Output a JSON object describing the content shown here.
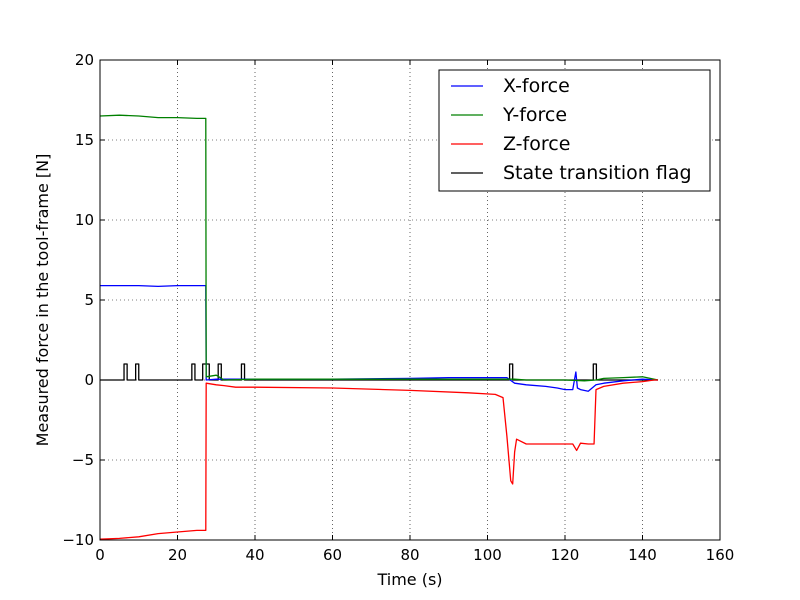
{
  "chart_data": {
    "type": "line",
    "title": "",
    "xlabel": "Time (s)",
    "ylabel": "Measured force in the tool-frame [N]",
    "xlim": [
      0,
      160
    ],
    "ylim": [
      -10,
      20
    ],
    "xticks": [
      0,
      20,
      40,
      60,
      80,
      100,
      120,
      140,
      160
    ],
    "yticks": [
      -10,
      -5,
      0,
      5,
      10,
      15,
      20
    ],
    "xtick_labels": [
      "0",
      "20",
      "40",
      "60",
      "80",
      "100",
      "120",
      "140",
      "160"
    ],
    "ytick_labels": [
      "−10",
      "−5",
      "0",
      "5",
      "10",
      "15",
      "20"
    ],
    "grid": true,
    "legend_position": "top-right",
    "series": [
      {
        "name": "X-force",
        "color": "#0000ff",
        "x": [
          0,
          5,
          10,
          15,
          20,
          25,
          27.3,
          27.4,
          30,
          40,
          60,
          80,
          90,
          100,
          105,
          107,
          110,
          115,
          118,
          120,
          122,
          122.8,
          123.2,
          124,
          126,
          128,
          130,
          135,
          140,
          144
        ],
        "y": [
          5.9,
          5.9,
          5.9,
          5.85,
          5.9,
          5.9,
          5.9,
          0.0,
          0.05,
          0.05,
          0.05,
          0.1,
          0.15,
          0.15,
          0.15,
          -0.2,
          -0.3,
          -0.4,
          -0.5,
          -0.6,
          -0.6,
          0.5,
          -0.5,
          -0.6,
          -0.7,
          -0.3,
          -0.2,
          -0.05,
          0.05,
          0.0
        ]
      },
      {
        "name": "Y-force",
        "color": "#008000",
        "x": [
          0,
          5,
          10,
          15,
          20,
          25,
          27.3,
          27.4,
          30,
          32,
          40,
          60,
          80,
          100,
          105,
          107,
          110,
          120,
          125,
          128,
          130,
          135,
          140,
          144
        ],
        "y": [
          16.5,
          16.55,
          16.5,
          16.4,
          16.4,
          16.35,
          16.35,
          0.2,
          0.3,
          0.0,
          0.05,
          0.05,
          0.05,
          0.05,
          0.05,
          0.05,
          0.0,
          0.0,
          -0.05,
          0.0,
          0.1,
          0.15,
          0.2,
          0.0
        ]
      },
      {
        "name": "Z-force",
        "color": "#ff0000",
        "x": [
          0,
          5,
          10,
          15,
          20,
          25,
          27.3,
          27.4,
          30,
          32,
          35,
          40,
          60,
          80,
          95,
          102,
          104,
          105,
          106,
          106.5,
          107,
          107.5,
          110,
          115,
          120,
          122,
          123,
          124,
          126,
          127.5,
          128,
          130,
          135,
          140,
          143,
          144
        ],
        "y": [
          -9.95,
          -9.9,
          -9.8,
          -9.6,
          -9.5,
          -9.4,
          -9.4,
          -0.2,
          -0.3,
          -0.35,
          -0.45,
          -0.45,
          -0.5,
          -0.65,
          -0.8,
          -0.9,
          -1.1,
          -3.5,
          -6.3,
          -6.5,
          -4.5,
          -3.7,
          -4.0,
          -4.0,
          -4.0,
          -4.0,
          -4.4,
          -3.95,
          -4.0,
          -4.0,
          -0.6,
          -0.4,
          -0.2,
          -0.1,
          0.0,
          0.0
        ]
      },
      {
        "name": "State transition flag",
        "color": "#000000",
        "x": [
          0,
          6.2,
          6.2,
          7.0,
          7.0,
          9.2,
          9.2,
          10.0,
          10.0,
          23.7,
          23.7,
          24.5,
          24.5,
          26.5,
          26.5,
          28.2,
          28.2,
          30.5,
          30.5,
          31.3,
          31.3,
          36.5,
          36.5,
          37.3,
          37.3,
          105.7,
          105.7,
          106.5,
          106.5,
          127.3,
          127.3,
          128.1,
          128.1,
          144
        ],
        "y": [
          0,
          0,
          1,
          1,
          0,
          0,
          1,
          1,
          0,
          0,
          1,
          1,
          0,
          0,
          1,
          1,
          0,
          0,
          1,
          1,
          0,
          0,
          1,
          1,
          0,
          0,
          1,
          1,
          0,
          0,
          1,
          1,
          0,
          0
        ]
      }
    ]
  }
}
